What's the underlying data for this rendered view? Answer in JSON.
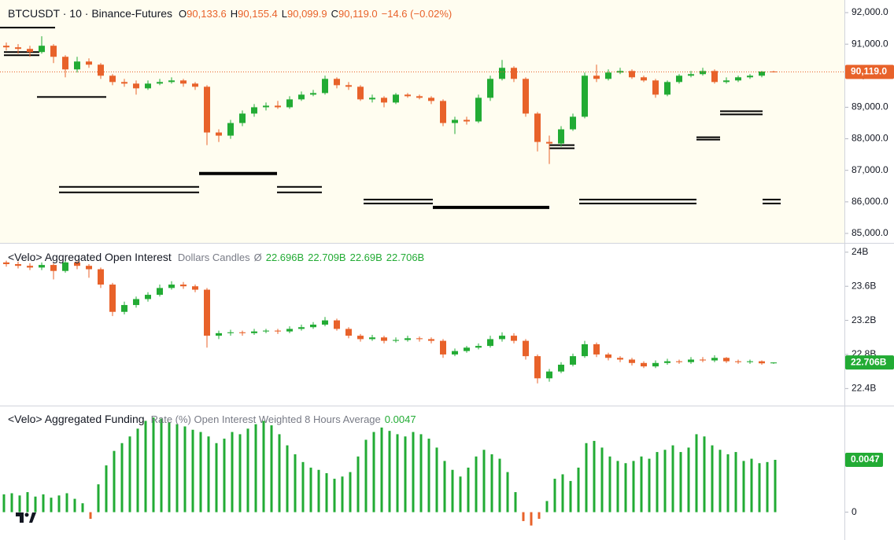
{
  "chart_data": [
    {
      "type": "candlestick",
      "title": "BTCUSDT · 10 · Binance-Futures",
      "legend": [
        {
          "key": "O",
          "text": "90,133.6"
        },
        {
          "key": "H",
          "text": "90,155.4"
        },
        {
          "key": "L",
          "text": "90,099.9"
        },
        {
          "key": "C",
          "text": "90,119.0"
        }
      ],
      "change": "−14.6 (−0.02%)",
      "up_color": "#22ab34",
      "down_color": "#e8622a",
      "legend_color": "#e8622a",
      "ylim": [
        84700,
        92400
      ],
      "yticks": [
        {
          "value": 92000,
          "label": "92,000.0"
        },
        {
          "value": 91000,
          "label": "91,000.0"
        },
        {
          "value": 90000,
          "label": "90,000.0"
        },
        {
          "value": 89000,
          "label": "89,000.0"
        },
        {
          "value": 88000,
          "label": "88,000.0"
        },
        {
          "value": 87000,
          "label": "87,000.0"
        },
        {
          "value": 86000,
          "label": "86,000.0"
        },
        {
          "value": 85000,
          "label": "85,000.0"
        }
      ],
      "last_label": "90,119.0",
      "last_label_color": "#e8622a",
      "levels": [
        91525,
        90750,
        90650,
        89325,
        86900,
        86475,
        86300,
        86475,
        86300,
        86075,
        85950,
        85825,
        86075,
        85950,
        86075,
        85950,
        88875,
        88775,
        88050,
        87975,
        87800,
        87700
      ],
      "open": [
        90950,
        90900,
        90850,
        90750,
        90950,
        90600,
        90200,
        90450,
        90350,
        90000,
        89800,
        89750,
        89600,
        89750,
        89800,
        89850,
        89750,
        89650,
        88200,
        88100,
        88500,
        88800,
        89000,
        89050,
        89000,
        89250,
        89400,
        89450,
        89900,
        89700,
        89650,
        89250,
        89300,
        89150,
        89400,
        89350,
        89300,
        89200,
        88500,
        88600,
        88550,
        89300,
        89900,
        90250,
        89900,
        88800,
        87900,
        87850,
        88300,
        88700,
        90000,
        89900,
        90100,
        90150,
        89950,
        89850,
        89400,
        89800,
        90000,
        90050,
        90150,
        89800,
        89850,
        89950,
        90000,
        90133.6
      ],
      "high": [
        91050,
        91000,
        90950,
        91250,
        91000,
        90650,
        90600,
        90550,
        90400,
        90050,
        89900,
        89850,
        89850,
        89900,
        89950,
        89900,
        89800,
        89700,
        88300,
        88600,
        88900,
        89100,
        89150,
        89200,
        89350,
        89500,
        89550,
        90000,
        89950,
        89800,
        89700,
        89400,
        89350,
        89450,
        89450,
        89400,
        89350,
        89250,
        88700,
        88700,
        89400,
        90000,
        90500,
        90300,
        89950,
        88850,
        88100,
        88400,
        88800,
        90100,
        90350,
        90200,
        90250,
        90200,
        90000,
        89900,
        89850,
        90050,
        90150,
        90250,
        90200,
        89950,
        90000,
        90050,
        90150,
        90155.4
      ],
      "low": [
        90800,
        90700,
        90600,
        90700,
        90400,
        89950,
        90100,
        90250,
        89900,
        89700,
        89650,
        89400,
        89550,
        89700,
        89750,
        89650,
        89550,
        87800,
        87900,
        88000,
        88400,
        88700,
        88900,
        88950,
        88950,
        89200,
        89350,
        89400,
        89600,
        89550,
        89200,
        89150,
        89000,
        89100,
        89300,
        89250,
        89100,
        88400,
        88150,
        88450,
        88500,
        89200,
        89850,
        89800,
        88700,
        87600,
        87200,
        87750,
        88250,
        88650,
        89800,
        89850,
        90050,
        89900,
        89800,
        89300,
        89350,
        89750,
        89950,
        90000,
        89750,
        89750,
        89800,
        89900,
        89950,
        90099.9
      ],
      "close": [
        90900,
        90850,
        90750,
        90950,
        90600,
        90200,
        90450,
        90350,
        90000,
        89800,
        89750,
        89600,
        89750,
        89800,
        89850,
        89750,
        89650,
        88200,
        88100,
        88500,
        88800,
        89000,
        89050,
        89000,
        89250,
        89400,
        89450,
        89900,
        89700,
        89650,
        89250,
        89300,
        89150,
        89400,
        89350,
        89300,
        89200,
        88500,
        88600,
        88550,
        89300,
        89900,
        90250,
        89900,
        88800,
        87900,
        87850,
        88300,
        88700,
        90000,
        89900,
        90100,
        90150,
        89950,
        89850,
        89400,
        89800,
        90000,
        90050,
        90150,
        89800,
        89850,
        89950,
        90000,
        90133.6,
        90119
      ]
    },
    {
      "type": "candlestick",
      "title": "<Velo> Aggregated Open Interest",
      "subtitle": "Dollars Candles",
      "symbol": "Ø",
      "legend": [
        {
          "text": "22.696B"
        },
        {
          "text": "22.709B"
        },
        {
          "text": "22.69B"
        },
        {
          "text": "22.706B"
        }
      ],
      "up_color": "#22ab34",
      "down_color": "#e8622a",
      "legend_color": "#22ab34",
      "ylim": [
        22.2,
        24.1
      ],
      "yticks": [
        {
          "value": 24,
          "label": "24B"
        },
        {
          "value": 23.6,
          "label": "23.6B"
        },
        {
          "value": 23.2,
          "label": "23.2B"
        },
        {
          "value": 22.8,
          "label": "22.8B"
        },
        {
          "value": 22.4,
          "label": "22.4B"
        }
      ],
      "last_label": "22.706B",
      "last_label_color": "#22ab34",
      "open": [
        23.88,
        23.86,
        23.84,
        23.82,
        23.85,
        23.78,
        23.88,
        23.84,
        23.8,
        23.62,
        23.3,
        23.38,
        23.45,
        23.5,
        23.58,
        23.62,
        23.6,
        23.56,
        23.02,
        23.05,
        23.06,
        23.05,
        23.07,
        23.08,
        23.07,
        23.1,
        23.12,
        23.15,
        23.2,
        23.1,
        23.02,
        22.98,
        23.0,
        22.96,
        22.97,
        22.99,
        22.98,
        22.96,
        22.8,
        22.84,
        22.88,
        22.9,
        22.98,
        23.02,
        22.96,
        22.78,
        22.52,
        22.6,
        22.68,
        22.78,
        22.92,
        22.8,
        22.76,
        22.74,
        22.7,
        22.66,
        22.7,
        22.72,
        22.71,
        22.74,
        22.73,
        22.76,
        22.72,
        22.71,
        22.72,
        22.696
      ],
      "high": [
        23.9,
        23.89,
        23.87,
        23.88,
        23.87,
        23.92,
        23.9,
        23.86,
        23.82,
        23.64,
        23.42,
        23.48,
        23.53,
        23.62,
        23.66,
        23.65,
        23.62,
        23.58,
        23.08,
        23.09,
        23.08,
        23.1,
        23.1,
        23.1,
        23.13,
        23.15,
        23.18,
        23.24,
        23.22,
        23.12,
        23.04,
        23.03,
        23.02,
        23.0,
        23.02,
        23.01,
        23.0,
        22.98,
        22.87,
        22.9,
        22.93,
        23.02,
        23.06,
        23.05,
        22.98,
        22.8,
        22.63,
        22.71,
        22.81,
        22.96,
        22.94,
        22.82,
        22.78,
        22.76,
        22.72,
        22.73,
        22.75,
        22.74,
        22.77,
        22.77,
        22.79,
        22.77,
        22.74,
        22.74,
        22.73,
        22.709
      ],
      "low": [
        23.83,
        23.81,
        23.79,
        23.79,
        23.68,
        23.76,
        23.8,
        23.7,
        23.58,
        23.25,
        23.27,
        23.35,
        23.42,
        23.48,
        23.56,
        23.57,
        23.53,
        22.88,
        22.98,
        23.02,
        23.02,
        23.03,
        23.05,
        23.04,
        23.05,
        23.08,
        23.1,
        23.13,
        23.08,
        22.99,
        22.95,
        22.96,
        22.93,
        22.94,
        22.95,
        22.95,
        22.93,
        22.76,
        22.78,
        22.82,
        22.86,
        22.88,
        22.95,
        22.93,
        22.74,
        22.46,
        22.48,
        22.58,
        22.66,
        22.76,
        22.77,
        22.73,
        22.71,
        22.67,
        22.64,
        22.64,
        22.68,
        22.69,
        22.69,
        22.71,
        22.71,
        22.7,
        22.69,
        22.69,
        22.68,
        22.69
      ],
      "close": [
        23.86,
        23.84,
        23.82,
        23.85,
        23.78,
        23.88,
        23.84,
        23.8,
        23.62,
        23.3,
        23.38,
        23.45,
        23.5,
        23.58,
        23.62,
        23.6,
        23.56,
        23.02,
        23.05,
        23.06,
        23.05,
        23.07,
        23.08,
        23.07,
        23.1,
        23.12,
        23.15,
        23.2,
        23.1,
        23.02,
        22.98,
        23.0,
        22.96,
        22.97,
        22.99,
        22.98,
        22.96,
        22.8,
        22.84,
        22.88,
        22.9,
        22.98,
        23.02,
        22.96,
        22.78,
        22.52,
        22.6,
        22.68,
        22.78,
        22.92,
        22.8,
        22.76,
        22.74,
        22.7,
        22.66,
        22.7,
        22.72,
        22.71,
        22.74,
        22.73,
        22.76,
        22.72,
        22.71,
        22.72,
        22.696,
        22.706
      ]
    },
    {
      "type": "bar",
      "title": "<Velo> Aggregated Funding",
      "subtitle": "Rate (%) Open Interest Weighted 8 Hours Average",
      "legend": [
        {
          "text": "0.0047"
        }
      ],
      "up_color": "#22ab34",
      "down_color": "#e8622a",
      "legend_color": "#22ab34",
      "ylim": [
        -0.0025,
        0.0095
      ],
      "yticks": [
        0
      ],
      "last_label": "0.0047",
      "last_label_color": "#22ab34",
      "values": [
        0.0016,
        0.0017,
        0.0015,
        0.0018,
        0.0014,
        0.0016,
        0.0013,
        0.0015,
        0.0017,
        0.0012,
        0.0008,
        -0.0006,
        0.0025,
        0.0042,
        0.0055,
        0.0062,
        0.0068,
        0.0075,
        0.0082,
        0.0085,
        0.0084,
        0.0081,
        0.0079,
        0.0077,
        0.0074,
        0.0072,
        0.0068,
        0.0062,
        0.0066,
        0.0072,
        0.007,
        0.0075,
        0.0079,
        0.0082,
        0.0078,
        0.007,
        0.006,
        0.0052,
        0.0045,
        0.004,
        0.0038,
        0.0035,
        0.003,
        0.0032,
        0.0036,
        0.005,
        0.0065,
        0.0072,
        0.0076,
        0.0073,
        0.007,
        0.0068,
        0.0072,
        0.007,
        0.0066,
        0.0058,
        0.0046,
        0.0038,
        0.0032,
        0.004,
        0.005,
        0.0056,
        0.0052,
        0.0048,
        0.0036,
        0.0018,
        -0.0008,
        -0.0012,
        -0.0006,
        0.001,
        0.003,
        0.0034,
        0.0028,
        0.004,
        0.0062,
        0.0064,
        0.0058,
        0.005,
        0.0046,
        0.0044,
        0.0046,
        0.005,
        0.0048,
        0.0054,
        0.0056,
        0.006,
        0.0054,
        0.0058,
        0.007,
        0.0068,
        0.006,
        0.0056,
        0.0052,
        0.0054,
        0.0046,
        0.0048,
        0.0044,
        0.0045,
        0.0047
      ]
    }
  ]
}
